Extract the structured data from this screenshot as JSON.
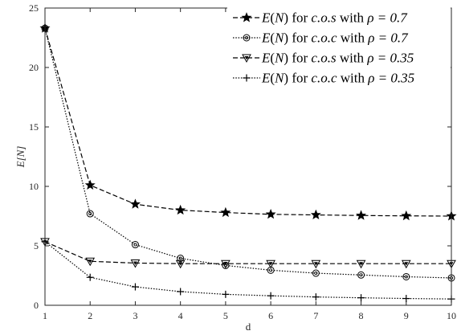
{
  "chart_data": {
    "type": "line",
    "title": "",
    "xlabel": "d",
    "ylabel": "E[N]",
    "xlim": [
      1,
      10
    ],
    "ylim": [
      0,
      25
    ],
    "x": [
      1,
      2,
      3,
      4,
      5,
      6,
      7,
      8,
      9,
      10
    ],
    "xticks": [
      "1",
      "2",
      "3",
      "4",
      "5",
      "6",
      "7",
      "8",
      "9",
      "10"
    ],
    "yticks": [
      "0",
      "5",
      "10",
      "15",
      "20",
      "25"
    ],
    "grid": false,
    "legend_position": "top-right",
    "series": [
      {
        "name": "E(N) for c.o.s with ρ = 0.7",
        "legend": {
          "func": "E",
          "arg": "N",
          "word1": "for",
          "policy": "c.o.s",
          "word2": "with",
          "rho": "ρ = 0.7"
        },
        "values": [
          23.3,
          10.1,
          8.5,
          8.0,
          7.8,
          7.65,
          7.6,
          7.55,
          7.52,
          7.5
        ],
        "line_style": "dashed",
        "marker": "star"
      },
      {
        "name": "E(N) for c.o.c with ρ = 0.7",
        "legend": {
          "func": "E",
          "arg": "N",
          "word1": "for",
          "policy": "c.o.c",
          "word2": "with",
          "rho": "ρ = 0.7"
        },
        "values": [
          23.3,
          7.7,
          5.1,
          3.95,
          3.35,
          2.95,
          2.7,
          2.55,
          2.4,
          2.3
        ],
        "line_style": "dotted",
        "marker": "circle"
      },
      {
        "name": "E(N) for c.o.s with ρ = 0.35",
        "legend": {
          "func": "E",
          "arg": "N",
          "word1": "for",
          "policy": "c.o.s",
          "word2": "with",
          "rho": "ρ = 0.35"
        },
        "values": [
          5.35,
          3.7,
          3.55,
          3.5,
          3.5,
          3.5,
          3.5,
          3.5,
          3.5,
          3.5
        ],
        "line_style": "dashed",
        "marker": "triangle-down"
      },
      {
        "name": "E(N) for c.o.c with ρ = 0.35",
        "legend": {
          "func": "E",
          "arg": "N",
          "word1": "for",
          "policy": "c.o.c",
          "word2": "with",
          "rho": "ρ = 0.35"
        },
        "values": [
          5.35,
          2.35,
          1.55,
          1.15,
          0.92,
          0.8,
          0.7,
          0.63,
          0.57,
          0.53
        ],
        "line_style": "dotted",
        "marker": "plus"
      }
    ]
  }
}
